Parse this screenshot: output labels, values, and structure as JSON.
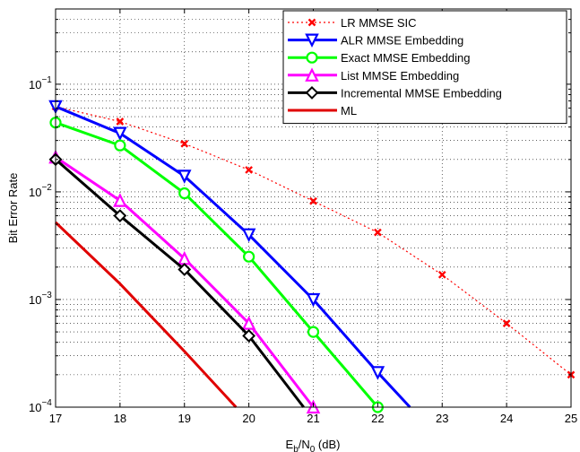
{
  "chart_data": {
    "type": "line",
    "title": "",
    "xlabel": {
      "main": "E",
      "sub1": "b",
      "mid": "/N",
      "sub2": "0",
      "unit": " (dB)"
    },
    "ylabel": "Bit Error Rate",
    "xlim": [
      17,
      25
    ],
    "ylim": [
      0.0001,
      0.5
    ],
    "yscale": "log",
    "grid": true,
    "legend_position": "top-right",
    "xticks": [
      17,
      18,
      19,
      20,
      21,
      22,
      23,
      24,
      25
    ],
    "xtick_labels": [
      "17",
      "18",
      "19",
      "20",
      "21",
      "22",
      "23",
      "24",
      "25"
    ],
    "yticks": [
      0.0001,
      0.001,
      0.01,
      0.1
    ],
    "ytick_labels": [
      {
        "base": "10",
        "exp": "−4"
      },
      {
        "base": "10",
        "exp": "−3"
      },
      {
        "base": "10",
        "exp": "−2"
      },
      {
        "base": "10",
        "exp": "−1"
      }
    ],
    "series": [
      {
        "name": "LR MMSE SIC",
        "color": "#ff0000",
        "style": "dotted",
        "marker": "x",
        "x": [
          17,
          18,
          19,
          20,
          21,
          22,
          23,
          24,
          25
        ],
        "y": [
          0.062,
          0.045,
          0.028,
          0.016,
          0.0082,
          0.0042,
          0.0017,
          0.0006,
          0.0002
        ]
      },
      {
        "name": "ALR MMSE Embedding",
        "color": "#0000ff",
        "style": "solid",
        "marker": "triangle-down",
        "x": [
          17,
          18,
          19,
          20,
          21,
          22,
          22.5
        ],
        "y": [
          0.062,
          0.035,
          0.014,
          0.004,
          0.001,
          0.00021,
          0.0001
        ],
        "markers_at": [
          17,
          18,
          19,
          20,
          21,
          22
        ]
      },
      {
        "name": "Exact MMSE Embedding",
        "color": "#00ff00",
        "style": "solid",
        "marker": "circle",
        "x": [
          17,
          18,
          19,
          20,
          21,
          22
        ],
        "y": [
          0.044,
          0.027,
          0.0097,
          0.0025,
          0.0005,
          0.0001
        ]
      },
      {
        "name": "List MMSE Embedding",
        "color": "#ff00ff",
        "style": "solid",
        "marker": "triangle-up",
        "x": [
          17,
          18,
          19,
          20,
          21
        ],
        "y": [
          0.021,
          0.0083,
          0.0024,
          0.0006,
          0.0001
        ]
      },
      {
        "name": "Incremental MMSE Embedding",
        "color": "#000000",
        "style": "solid",
        "marker": "diamond",
        "x": [
          17,
          18,
          19,
          20,
          20.85
        ],
        "y": [
          0.02,
          0.006,
          0.0019,
          0.00046,
          0.0001
        ],
        "markers_at": [
          17,
          18,
          19,
          20
        ]
      },
      {
        "name": "ML",
        "color": "#e00000",
        "style": "solid",
        "marker": "none",
        "x": [
          17,
          18,
          19,
          19.8
        ],
        "y": [
          0.0052,
          0.0014,
          0.00033,
          0.0001
        ]
      }
    ]
  }
}
